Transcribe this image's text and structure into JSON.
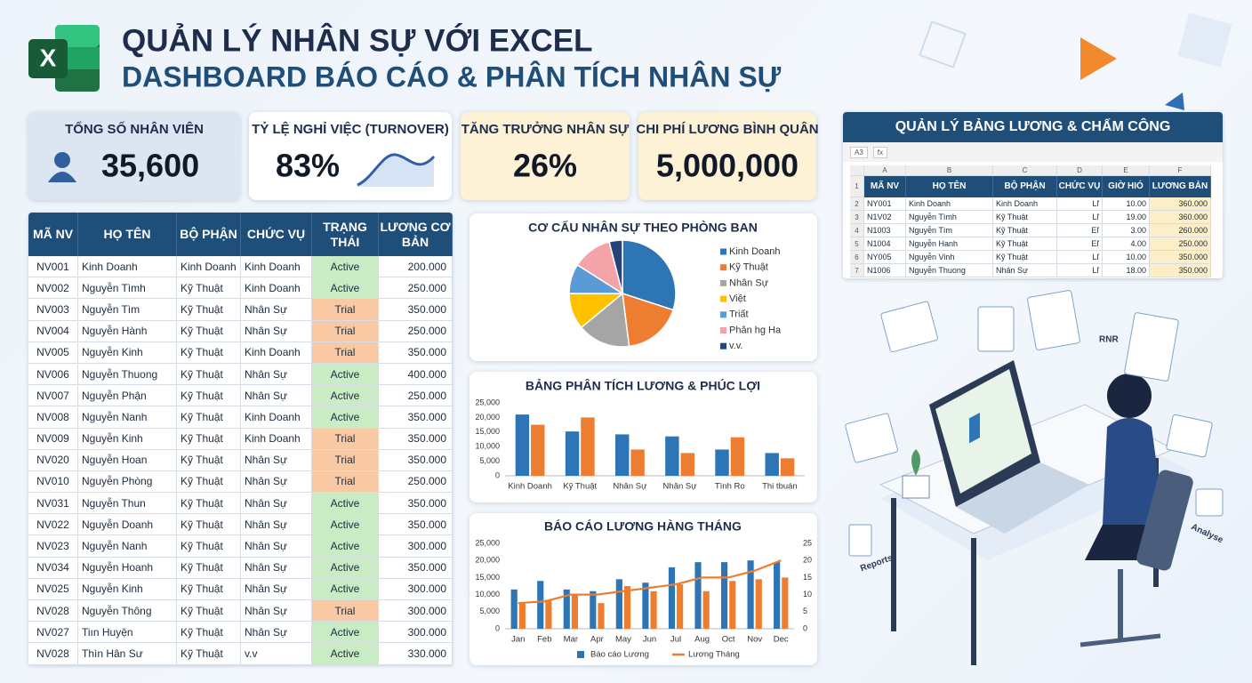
{
  "header": {
    "title": "QUẢN LÝ NHÂN SỰ VỚI EXCEL",
    "subtitle": "DASHBOARD BÁO CÁO & PHÂN TÍCH NHÂN SỰ",
    "logo": "X"
  },
  "kpis": [
    {
      "label": "TỔNG SỐ NHÂN VIÊN",
      "value": "35,600"
    },
    {
      "label": "TỶ LỆ NGHỈ VIỆC (TURNOVER)",
      "value": "83%"
    },
    {
      "label": "TĂNG TRƯỞNG NHÂN SỰ",
      "value": "26%"
    },
    {
      "label": "CHI PHÍ LƯƠNG BÌNH QUÂN",
      "value": "5,000,000"
    }
  ],
  "table": {
    "columns": [
      "MÃ NV",
      "HỌ TÊN",
      "BỘ PHẬN",
      "CHỨC VỤ",
      "TRẠNG THÁI",
      "LƯƠNG CƠ BẢN"
    ],
    "rows": [
      [
        "NV001",
        "Kinh Doanh",
        "Kinh Doanh",
        "Kinh Doanh",
        "Active",
        "200.000"
      ],
      [
        "NV002",
        "Nguyễn Tìmh",
        "Kỹ Thuật",
        "Kinh Doanh",
        "Active",
        "250.000"
      ],
      [
        "NV003",
        "Nguyễn Tìm",
        "Kỹ Thuật",
        "Nhân Sự",
        "Trial",
        "350.000"
      ],
      [
        "NV004",
        "Nguyễn Hành",
        "Kỹ Thuật",
        "Nhân Sự",
        "Trial",
        "250.000"
      ],
      [
        "NV005",
        "Nguyễn Kinh",
        "Kỹ Thuật",
        "Kinh Doanh",
        "Trial",
        "350.000"
      ],
      [
        "NV006",
        "Nguyễn Thuong",
        "Kỹ Thuật",
        "Nhân Sự",
        "Active",
        "400.000"
      ],
      [
        "NV007",
        "Nguyễn Phận",
        "Kỹ Thuật",
        "Nhân Sự",
        "Active",
        "250.000"
      ],
      [
        "NV008",
        "Nguyễn Nanh",
        "Kỹ Thuật",
        "Kinh Doanh",
        "Active",
        "350.000"
      ],
      [
        "NV009",
        "Nguyễn Kinh",
        "Kỹ Thuật",
        "Kinh Doanh",
        "Trial",
        "350.000"
      ],
      [
        "NV020",
        "Nguyễn Hoan",
        "Kỹ Thuật",
        "Nhân Sự",
        "Trial",
        "350.000"
      ],
      [
        "NV010",
        "Nguyễn Phòng",
        "Kỹ Thuật",
        "Nhân Sự",
        "Trial",
        "250.000"
      ],
      [
        "NV031",
        "Nguyễn Thun",
        "Kỹ Thuật",
        "Nhân Sự",
        "Active",
        "350.000"
      ],
      [
        "NV022",
        "Nguyễn Doanh",
        "Kỹ Thuật",
        "Nhân Sự",
        "Active",
        "350.000"
      ],
      [
        "NV023",
        "Nguyễn Nanh",
        "Kỹ Thuật",
        "Nhân Sự",
        "Active",
        "300.000"
      ],
      [
        "NV034",
        "Nguyễn Hoanh",
        "Kỹ Thuật",
        "Nhân Sự",
        "Active",
        "350.000"
      ],
      [
        "NV025",
        "Nguyễn Kinh",
        "Kỹ Thuật",
        "Nhân Sự",
        "Active",
        "300.000"
      ],
      [
        "NV028",
        "Nguyễn Thông",
        "Kỹ Thuật",
        "Nhân Sự",
        "Trial",
        "300.000"
      ],
      [
        "NV027",
        "Tiın Huyện",
        "Kỹ Thuật",
        "Nhân Sự",
        "Active",
        "300.000"
      ],
      [
        "NV028",
        "Thìn Hân Sư",
        "Kỹ Thuật",
        "v.v",
        "Active",
        "330.000"
      ]
    ],
    "status_colors": {
      "Active": "#c9ecc4",
      "Trial": "#f9c9a3"
    }
  },
  "sheet": {
    "title": "QUẢN LÝ BẢNG LƯƠNG & CHẤM CÔNG",
    "cell_ref": "A3",
    "formula_icon": "fx",
    "column_letters": [
      "A",
      "B",
      "C",
      "D",
      "E",
      "F"
    ],
    "row_numbers": [
      1,
      2,
      3,
      4,
      5,
      6,
      7
    ],
    "columns": [
      "MÃ NV",
      "HỌ TÊN",
      "BỘ PHẬN",
      "CHỨC VỤ",
      "GIỜ HIÓ",
      "LƯƠNG BẢN"
    ],
    "rows": [
      [
        "NY001",
        "Kinh Doanh",
        "Kinh Doanh",
        "Lľ",
        "10.00",
        "360.000"
      ],
      [
        "N1V02",
        "Nguyễn Tìmh",
        "Kỹ Thuật",
        "Lľ",
        "19.00",
        "360.000"
      ],
      [
        "N1003",
        "Nguyễn Tìm",
        "Kỹ Thuật",
        "Eľ",
        "3.00",
        "260.000"
      ],
      [
        "N1004",
        "Nguyễn Hanh",
        "Kỹ Thuật",
        "Eľ",
        "4.00",
        "250.000"
      ],
      [
        "NY005",
        "Nguyễn Vinh",
        "Kỹ Thuật",
        "Lľ",
        "10.00",
        "350.000"
      ],
      [
        "N1006",
        "Nguyễn Thuong",
        "Nhân Sự",
        "Lľ",
        "18.00",
        "350.000"
      ]
    ]
  },
  "illustration": {
    "labels": [
      "Reports",
      "Analyse",
      "RNR"
    ]
  },
  "chart_data": [
    {
      "type": "pie",
      "title": "CƠ CẤU NHÂN SỰ THEO PHÒNG BAN",
      "categories": [
        "Kinh Doanh",
        "Kỹ Thuật",
        "Nhân Sự",
        "Việt",
        "Triất",
        "Phân hg Ha",
        "v.v."
      ],
      "values": [
        30,
        18,
        16,
        11,
        9,
        12,
        4
      ],
      "colors": [
        "#2e75b6",
        "#ed7d31",
        "#a5a5a5",
        "#ffc000",
        "#5b9bd5",
        "#f4a3a8",
        "#264478"
      ],
      "legend": "right"
    },
    {
      "type": "bar",
      "title": "BẢNG PHÂN TÍCH LƯƠNG & PHÚC LỢI",
      "categories": [
        "Kinh Doanh",
        "Kỹ Thuật",
        "Nhân Sự",
        "Nhân Sự",
        "Tình Ro",
        "Thi tbuán"
      ],
      "series": [
        {
          "color": "#2e75b6",
          "values": [
            21000,
            15200,
            14200,
            13500,
            9000,
            7800
          ]
        },
        {
          "color": "#ed7d31",
          "values": [
            17500,
            20000,
            9000,
            7800,
            13200,
            6000
          ]
        }
      ],
      "ylim": [
        0,
        25000
      ],
      "yticks": [
        0,
        {
          "value": 5000,
          "label": "5,000"
        },
        {
          "value": 10000,
          "label": "10,000"
        },
        {
          "value": 15000,
          "label": "15,000"
        },
        {
          "value": 20000,
          "label": "20,000"
        },
        {
          "value": 25000,
          "label": "25,000"
        }
      ],
      "grid": false
    },
    {
      "type": "bar",
      "title": "BÁO CÁO LƯƠNG HÀNG THÁNG",
      "categories": [
        "Jan",
        "Feb",
        "Mar",
        "Apr",
        "May",
        "Jun",
        "Jul",
        "Aug",
        "Oct",
        "Nov",
        "Dec"
      ],
      "series": [
        {
          "name": "Báo cáo Lương",
          "color": "#2e75b6",
          "values": [
            11500,
            14000,
            11500,
            11000,
            14500,
            13500,
            18000,
            19500,
            19500,
            20000,
            19500
          ]
        },
        {
          "color": "#ed7d31",
          "values": [
            7500,
            8500,
            10000,
            7500,
            12500,
            11000,
            13000,
            11000,
            14000,
            14500,
            15000
          ]
        },
        {
          "name": "Lương Tháng",
          "type": "line",
          "axis": "y2",
          "color": "#ed7d31",
          "values": [
            7.5,
            8,
            10,
            10,
            11,
            12,
            13,
            15,
            15,
            17,
            20
          ]
        }
      ],
      "ylim": [
        0,
        25000
      ],
      "yticks": [
        0,
        {
          "value": 5000,
          "label": "5,000"
        },
        {
          "value": 10000,
          "label": "10,000"
        },
        {
          "value": 15000,
          "label": "15,000"
        },
        {
          "value": 20000,
          "label": "20,000"
        },
        {
          "value": 25000,
          "label": "25,000"
        }
      ],
      "y2lim": [
        0,
        25
      ],
      "y2ticks": [
        0,
        5,
        10,
        15,
        20,
        25
      ],
      "grid": false,
      "legend": "bottom"
    }
  ]
}
